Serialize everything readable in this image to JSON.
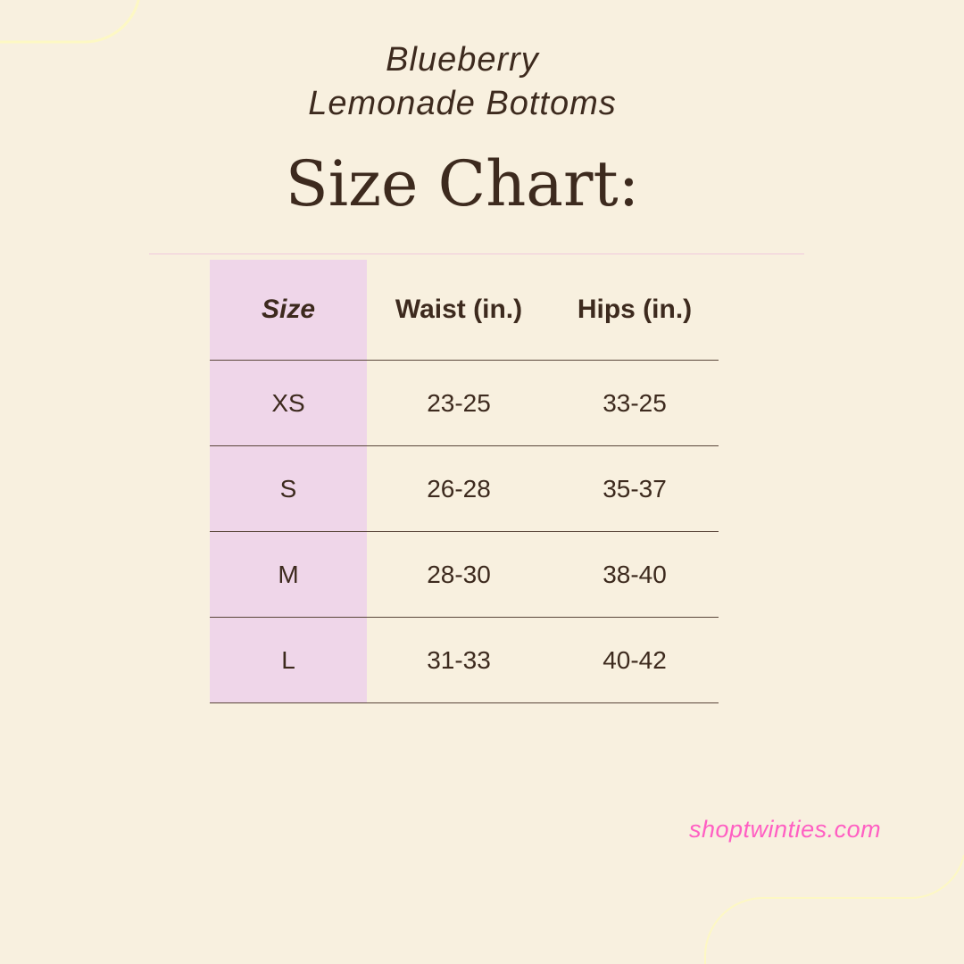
{
  "header": {
    "line1": "Blueberry",
    "line2": "Lemonade Bottoms",
    "title": "Size Chart:"
  },
  "table": {
    "headers": [
      "Size",
      "Waist (in.)",
      "Hips (in.)"
    ],
    "rows": [
      [
        "XS",
        "23-25",
        "33-25"
      ],
      [
        "S",
        "26-28",
        "35-37"
      ],
      [
        "M",
        "28-30",
        "38-40"
      ],
      [
        "L",
        "31-33",
        "40-42"
      ]
    ]
  },
  "footer": {
    "website": "shoptwinties.com"
  },
  "colors": {
    "background": "#f8f0df",
    "text": "#3d2a1e",
    "size_column": "#efd6e9",
    "link": "#ff5fc3",
    "decor_line": "#fdf8c4"
  }
}
